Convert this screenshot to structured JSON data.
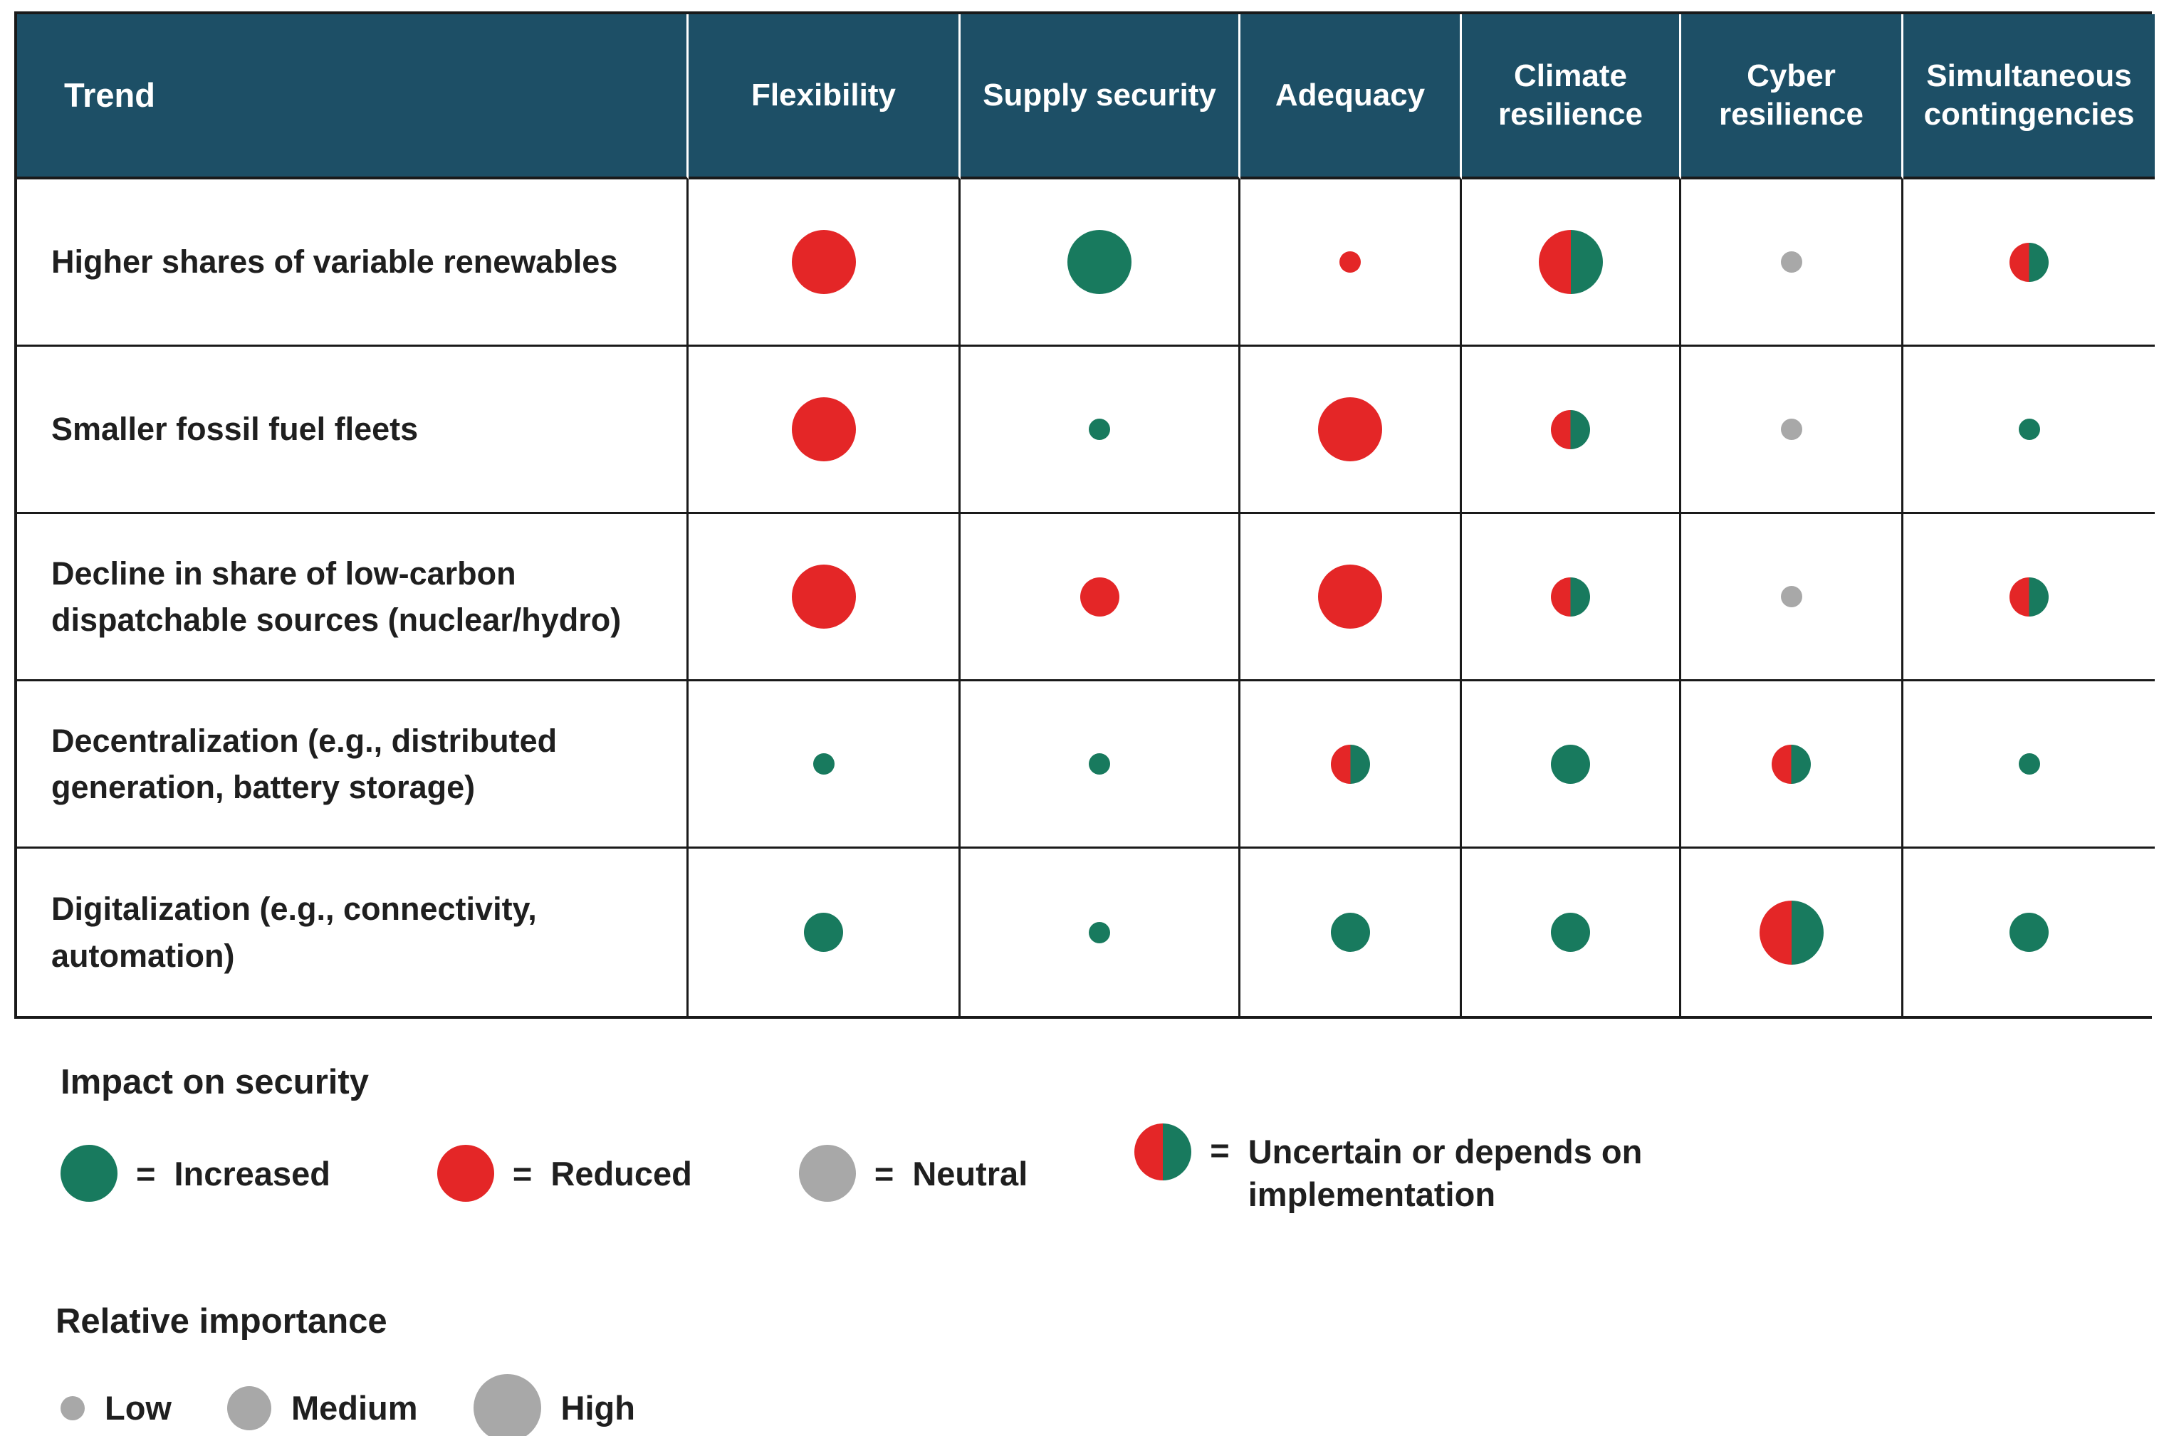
{
  "chart_data": {
    "type": "table",
    "description": "Matrix of power-system trends vs. security dimensions; each cell encodes impact (color) and relative importance (circle size)",
    "columns": [
      "Trend",
      "Flexibility",
      "Supply security",
      "Adequacy",
      "Climate resilience",
      "Cyber resilience",
      "Simultaneous contingencies"
    ],
    "rows": [
      {
        "trend": "Higher shares of variable renewables",
        "cells": [
          {
            "impact": "reduced",
            "importance": "high"
          },
          {
            "impact": "increased",
            "importance": "high"
          },
          {
            "impact": "reduced",
            "importance": "low"
          },
          {
            "impact": "uncertain",
            "importance": "high"
          },
          {
            "impact": "neutral",
            "importance": "low"
          },
          {
            "impact": "uncertain",
            "importance": "medium"
          }
        ]
      },
      {
        "trend": "Smaller fossil fuel fleets",
        "cells": [
          {
            "impact": "reduced",
            "importance": "high"
          },
          {
            "impact": "increased",
            "importance": "low"
          },
          {
            "impact": "reduced",
            "importance": "high"
          },
          {
            "impact": "uncertain",
            "importance": "medium"
          },
          {
            "impact": "neutral",
            "importance": "low"
          },
          {
            "impact": "increased",
            "importance": "low"
          }
        ]
      },
      {
        "trend": "Decline in share of low-carbon dispatchable sources (nuclear/hydro)",
        "cells": [
          {
            "impact": "reduced",
            "importance": "high"
          },
          {
            "impact": "reduced",
            "importance": "medium"
          },
          {
            "impact": "reduced",
            "importance": "high"
          },
          {
            "impact": "uncertain",
            "importance": "medium"
          },
          {
            "impact": "neutral",
            "importance": "low"
          },
          {
            "impact": "uncertain",
            "importance": "medium"
          }
        ]
      },
      {
        "trend": "Decentralization (e.g., distributed generation, battery storage)",
        "cells": [
          {
            "impact": "increased",
            "importance": "low"
          },
          {
            "impact": "increased",
            "importance": "low"
          },
          {
            "impact": "uncertain",
            "importance": "medium"
          },
          {
            "impact": "increased",
            "importance": "medium"
          },
          {
            "impact": "uncertain",
            "importance": "medium"
          },
          {
            "impact": "increased",
            "importance": "low"
          }
        ]
      },
      {
        "trend": "Digitalization (e.g., connectivity, automation)",
        "cells": [
          {
            "impact": "increased",
            "importance": "medium"
          },
          {
            "impact": "increased",
            "importance": "low"
          },
          {
            "impact": "increased",
            "importance": "medium"
          },
          {
            "impact": "increased",
            "importance": "medium"
          },
          {
            "impact": "uncertain",
            "importance": "high"
          },
          {
            "impact": "increased",
            "importance": "medium"
          }
        ]
      }
    ]
  },
  "legend": {
    "impact_title": "Impact on security",
    "impact_items": [
      {
        "impact": "increased",
        "eq": "=",
        "text": "Increased"
      },
      {
        "impact": "reduced",
        "eq": "=",
        "text": "Reduced"
      },
      {
        "impact": "neutral",
        "eq": "=",
        "text": "Neutral"
      },
      {
        "impact": "uncertain",
        "eq": "=",
        "text": "Uncertain or depends on implementation"
      }
    ],
    "importance_title": "Relative importance",
    "importance_items": [
      {
        "importance": "low",
        "label": "Low"
      },
      {
        "importance": "medium",
        "label": "Medium"
      },
      {
        "importance": "high",
        "label": "High"
      }
    ]
  },
  "colors": {
    "header_bg": "#1d4f66",
    "increased": "#187a5e",
    "reduced": "#e42627",
    "neutral": "#a8a8a8",
    "border": "#1a1a1a"
  }
}
